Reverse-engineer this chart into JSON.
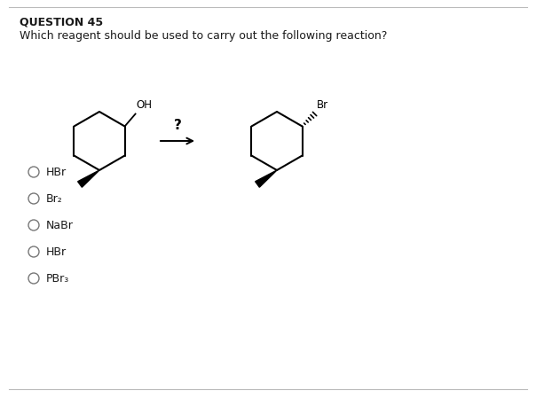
{
  "title": "QUESTION 45",
  "question": "Which reagent should be used to carry out the following reaction?",
  "options": [
    "HBr",
    "Br₂",
    "NaBr",
    "HBr",
    "PBr₃"
  ],
  "arrow_label": "?",
  "background_color": "#ffffff",
  "text_color": "#1a1a1a",
  "fig_width": 6.04,
  "fig_height": 4.49,
  "dpi": 100
}
